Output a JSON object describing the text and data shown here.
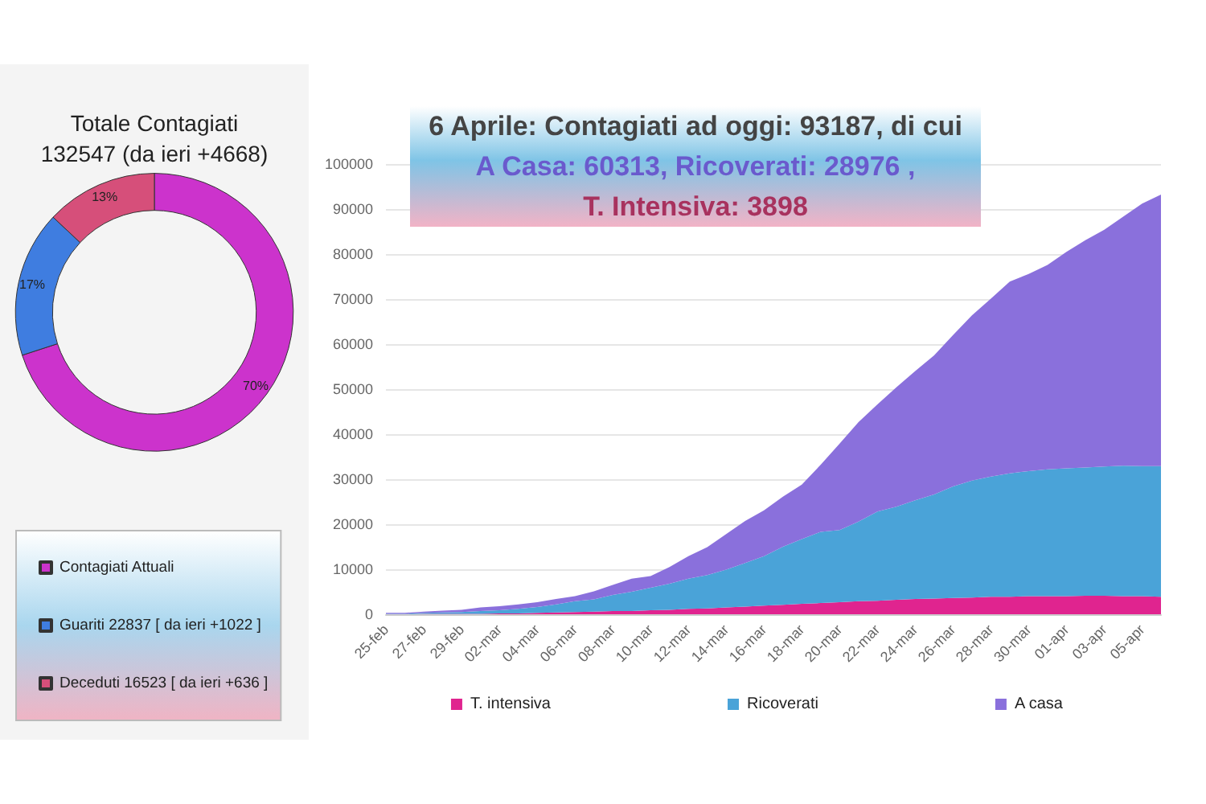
{
  "chart_data": [
    {
      "type": "donut",
      "title": "Totale Contagiati\n132547 (da ieri +4668)",
      "categories": [
        "Contagiati Attuali",
        "Guariti 22837 [ da ieri +1022 ]",
        "Deceduti 16523 [ da ieri +636 ]"
      ],
      "values": [
        70,
        17,
        13
      ],
      "colors": [
        "#cc33cc",
        "#3f7de0",
        "#d64f7a"
      ],
      "value_labels": [
        "70%",
        "17%",
        "13%"
      ],
      "legend": "bottom"
    },
    {
      "type": "area",
      "stacked": true,
      "title": "6 Aprile: Contagiati ad oggi: 93187, di cui\nA Casa: 60313, Ricoverati: 28976 ,\nT. Intensiva: 3898",
      "categories": [
        "25-feb",
        null,
        "27-feb",
        null,
        "29-feb",
        null,
        "02-mar",
        null,
        "04-mar",
        null,
        "06-mar",
        null,
        "08-mar",
        null,
        "10-mar",
        null,
        "12-mar",
        null,
        "14-mar",
        null,
        "16-mar",
        null,
        "18-mar",
        null,
        "20-mar",
        null,
        "22-mar",
        null,
        "24-mar",
        null,
        "26-mar",
        null,
        "28-mar",
        null,
        "30-mar",
        null,
        "01-apr",
        null,
        "03-apr",
        null,
        "05-apr",
        null
      ],
      "series": [
        {
          "name": "T. intensiva",
          "color": "#e0248f",
          "values": [
            0,
            0,
            100,
            100,
            100,
            100,
            200,
            200,
            300,
            400,
            500,
            600,
            700,
            700,
            900,
            1000,
            1200,
            1300,
            1500,
            1700,
            1900,
            2100,
            2300,
            2500,
            2700,
            2900,
            3000,
            3200,
            3400,
            3500,
            3600,
            3700,
            3900,
            3900,
            4000,
            4000,
            4000,
            4100,
            4100,
            4000,
            4000,
            3900
          ]
        },
        {
          "name": "Ricoverati",
          "color": "#4aa3d8",
          "values": [
            100,
            100,
            200,
            300,
            400,
            600,
            700,
            1000,
            1300,
            1800,
            2400,
            2700,
            3600,
            4300,
            5000,
            5800,
            6700,
            7400,
            8400,
            9700,
            11000,
            12900,
            14400,
            15800,
            16000,
            17700,
            19800,
            20700,
            21900,
            23100,
            24800,
            26000,
            26700,
            27400,
            27800,
            28200,
            28400,
            28500,
            28700,
            29000,
            28900,
            29000
          ]
        },
        {
          "name": "A casa",
          "color": "#8a70dc",
          "values": [
            200,
            200,
            300,
            400,
            500,
            800,
            900,
            1000,
            1100,
            1200,
            1100,
            1800,
            2200,
            2900,
            2600,
            3700,
            5000,
            6200,
            7900,
            9300,
            10200,
            11100,
            12100,
            14900,
            19200,
            22100,
            23800,
            26500,
            28700,
            30900,
            33600,
            36700,
            39500,
            42600,
            43800,
            45400,
            48100,
            50500,
            52600,
            55300,
            58300,
            60300
          ]
        }
      ],
      "ylim": [
        0,
        100000
      ],
      "yticks": [
        0,
        10000,
        20000,
        30000,
        40000,
        50000,
        60000,
        70000,
        80000,
        90000,
        100000
      ],
      "grid": "y",
      "legend": "bottom"
    }
  ]
}
